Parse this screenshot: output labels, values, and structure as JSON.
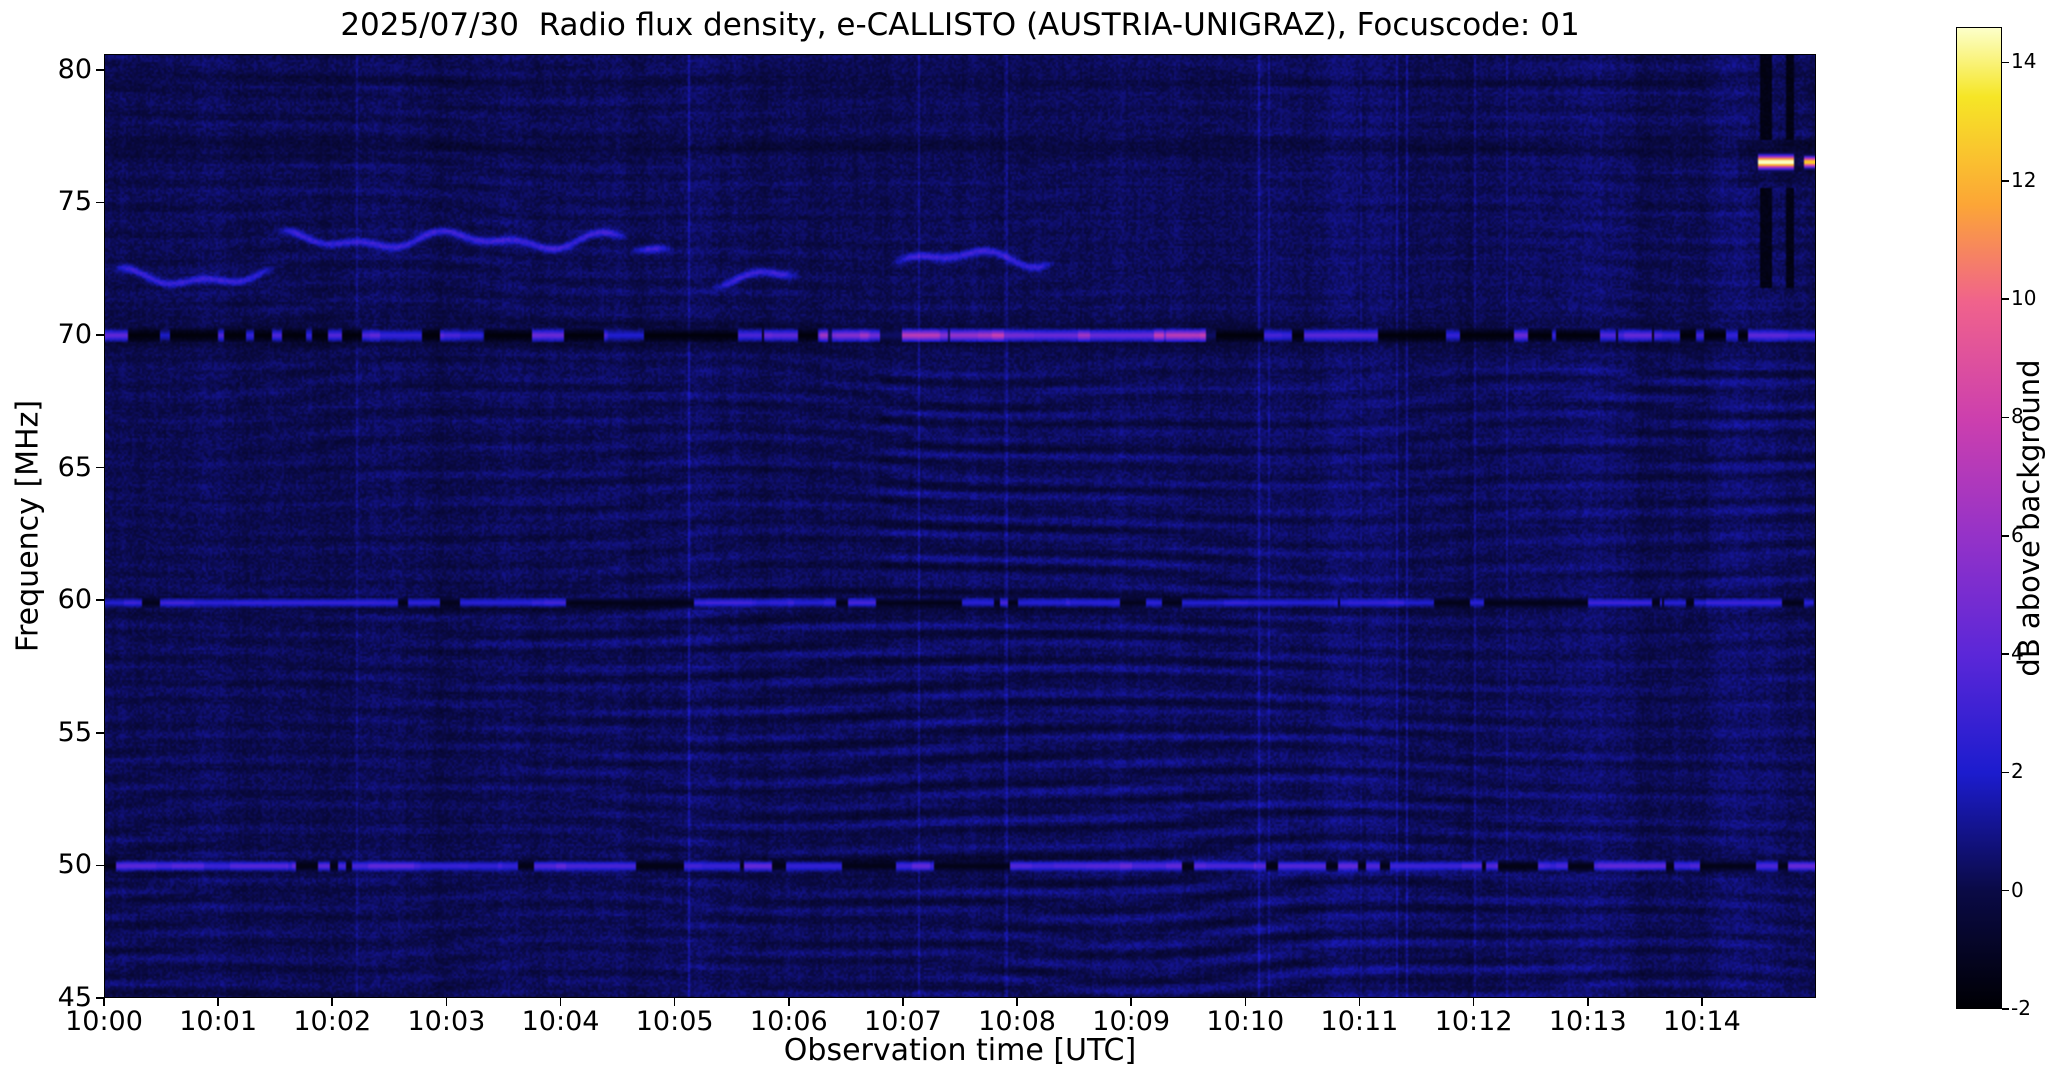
{
  "chart_data": {
    "type": "heatmap",
    "title": "2025/07/30  Radio flux density, e-CALLISTO (AUSTRIA-UNIGRAZ), Focuscode: 01",
    "xlabel": "Observation time [UTC]",
    "ylabel": "Frequency [MHz]",
    "x_range_minutes": [
      0,
      15
    ],
    "x_ticks": [
      {
        "label": "10:00",
        "minute": 0
      },
      {
        "label": "10:01",
        "minute": 1
      },
      {
        "label": "10:02",
        "minute": 2
      },
      {
        "label": "10:03",
        "minute": 3
      },
      {
        "label": "10:04",
        "minute": 4
      },
      {
        "label": "10:05",
        "minute": 5
      },
      {
        "label": "10:06",
        "minute": 6
      },
      {
        "label": "10:07",
        "minute": 7
      },
      {
        "label": "10:08",
        "minute": 8
      },
      {
        "label": "10:09",
        "minute": 9
      },
      {
        "label": "10:10",
        "minute": 10
      },
      {
        "label": "10:11",
        "minute": 11
      },
      {
        "label": "10:12",
        "minute": 12
      },
      {
        "label": "10:13",
        "minute": 13
      },
      {
        "label": "10:14",
        "minute": 14
      }
    ],
    "y_ticks": [
      45,
      50,
      55,
      60,
      65,
      70,
      75,
      80
    ],
    "y_range_mhz": [
      45,
      80.6
    ],
    "colorbar": {
      "label": "dB above background",
      "ticks": [
        14,
        12,
        10,
        8,
        6,
        4,
        2,
        0,
        -2
      ],
      "vmin": -2,
      "vmax": 14.6,
      "colormap_stops": [
        {
          "t": 0.0,
          "color": "#000004"
        },
        {
          "t": 0.12,
          "color": "#0a0a46"
        },
        {
          "t": 0.24,
          "color": "#1c1cce"
        },
        {
          "t": 0.36,
          "color": "#5b27d8"
        },
        {
          "t": 0.48,
          "color": "#9432c8"
        },
        {
          "t": 0.6,
          "color": "#cc3fae"
        },
        {
          "t": 0.72,
          "color": "#f0628c"
        },
        {
          "t": 0.82,
          "color": "#fca636"
        },
        {
          "t": 0.93,
          "color": "#f6e626"
        },
        {
          "t": 1.0,
          "color": "#fcffc9"
        }
      ]
    },
    "features": {
      "background_level_db": 0.35,
      "fringe_description": "wavy interference fringes across the band, stronger below 60 MHz and in 60-68 MHz after 10:07",
      "rfi_lines": [
        {
          "freq_mhz": 50.0,
          "description": "intermittent bright blue channel with dark gaps"
        },
        {
          "freq_mhz": 59.9,
          "description": "intermittent dark/blue mottled channel"
        },
        {
          "freq_mhz": 70.0,
          "description": "dark channel with bright segments; pink/magenta enhancement 10:06-10:09"
        }
      ],
      "drifting_line_segments": [
        {
          "t0": 0.05,
          "t1": 1.5,
          "f": 72.2
        },
        {
          "t0": 1.5,
          "t1": 4.6,
          "f": 73.6
        },
        {
          "t0": 4.6,
          "t1": 5.0,
          "f": 73.2
        },
        {
          "t0": 5.3,
          "t1": 6.1,
          "f": 72.2
        },
        {
          "t0": 6.9,
          "t1": 8.35,
          "f": 72.9
        }
      ],
      "bright_burst": {
        "freq_mhz": 76.55,
        "t0": 14.5,
        "t1": 14.82,
        "peak_db": 14.6
      },
      "dropout_block": {
        "t0": 14.33,
        "t1": 14.97,
        "freq_min": 71.8,
        "freq_max": 80.6
      }
    }
  }
}
